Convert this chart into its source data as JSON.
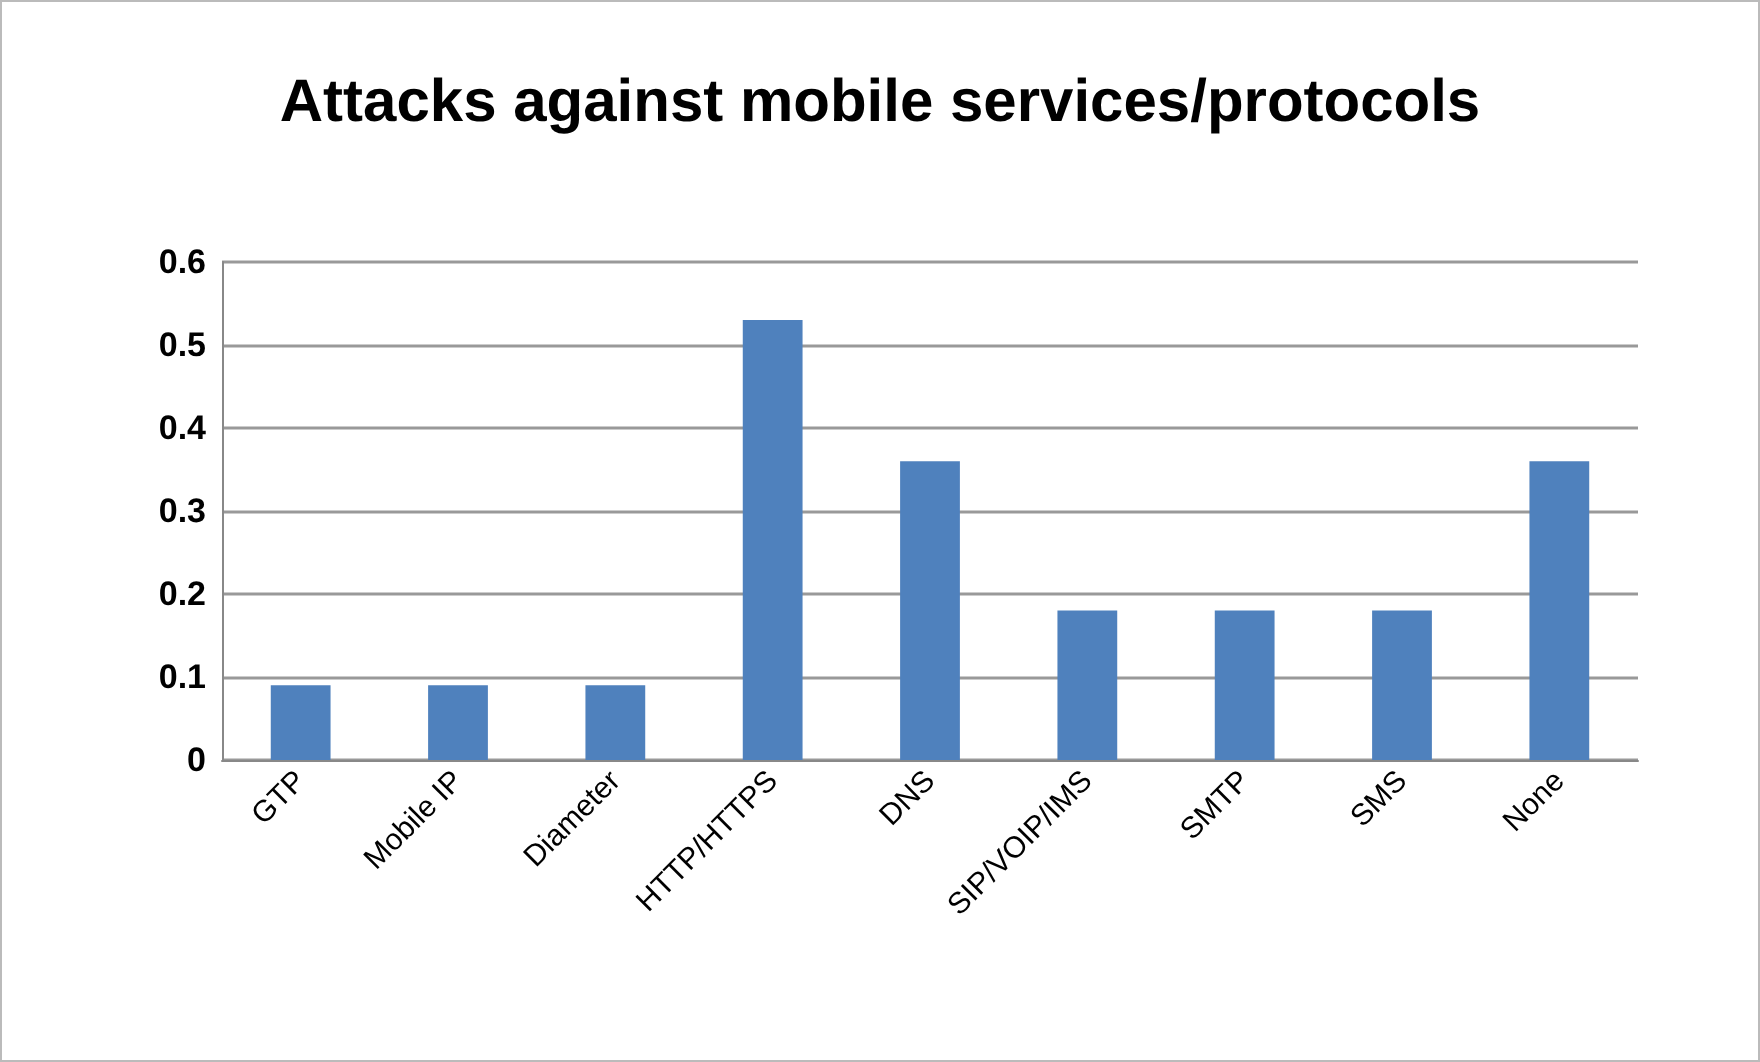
{
  "chart_data": {
    "type": "bar",
    "title": "Attacks against mobile services/protocols",
    "categories": [
      "GTP",
      "Mobile IP",
      "Diameter",
      "HTTP/HTTPS",
      "DNS",
      "SIP/VOIP/IMS",
      "SMTP",
      "SMS",
      "None"
    ],
    "values": [
      0.09,
      0.09,
      0.09,
      0.53,
      0.36,
      0.18,
      0.18,
      0.18,
      0.36
    ],
    "color": "#4f81bd",
    "ylim": [
      0,
      0.6
    ],
    "yticks": [
      0,
      0.1,
      0.2,
      0.3,
      0.4,
      0.5,
      0.6
    ],
    "grid": "y"
  }
}
